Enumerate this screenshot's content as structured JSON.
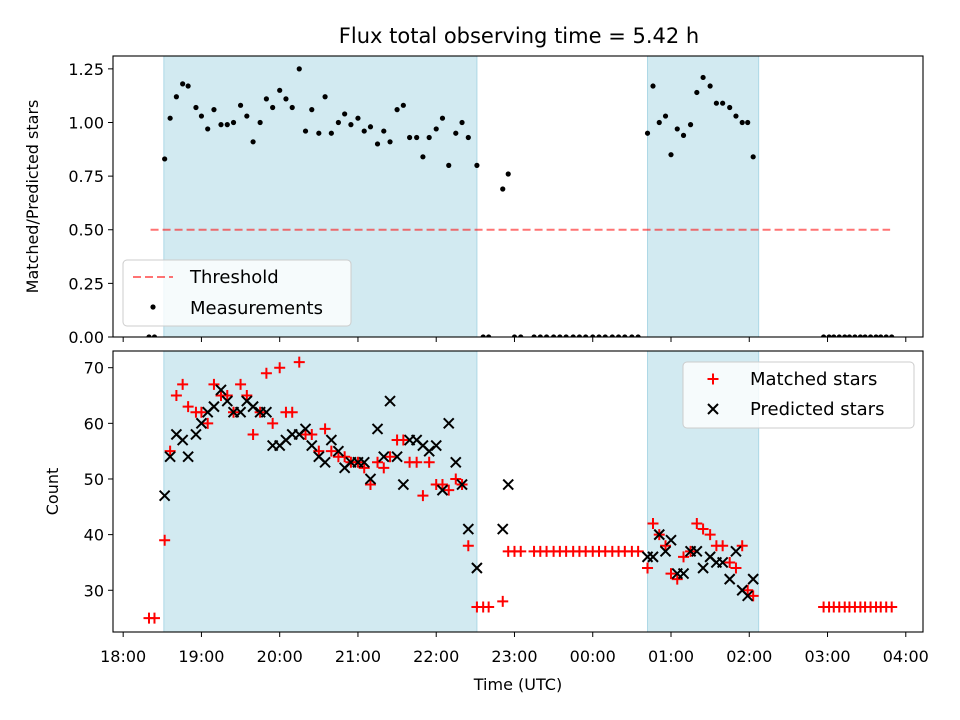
{
  "title": "Flux total observing time = 5.42 h",
  "colors": {
    "shade": "#add8e6",
    "threshold": "#ff0000",
    "measurement": "#000000",
    "matched": "#ff0000",
    "predicted": "#000000"
  },
  "chart_data": [
    {
      "type": "scatter",
      "title": "Flux total observing time = 5.42 h",
      "xlabel": "",
      "ylabel": "Matched/Predicted stars",
      "xlim": [
        -0.13,
        10.22
      ],
      "ylim": [
        0,
        1.31
      ],
      "x_ticks": [
        "18:00",
        "19:00",
        "20:00",
        "21:00",
        "22:00",
        "23:00",
        "00:00",
        "01:00",
        "02:00",
        "03:00",
        "04:00"
      ],
      "y_ticks": [
        "0.00",
        "0.25",
        "0.50",
        "0.75",
        "1.00",
        "1.25"
      ],
      "shaded_intervals": [
        [
          0.52,
          4.52
        ],
        [
          6.7,
          8.12
        ]
      ],
      "legend": {
        "position": "lower-left",
        "entries": [
          "Threshold",
          "Measurements"
        ]
      },
      "threshold": {
        "name": "Threshold",
        "x": [
          0.35,
          9.8
        ],
        "y": 0.5
      },
      "series": [
        {
          "name": "Measurements",
          "x": [
            0.33,
            0.4,
            0.53,
            0.6,
            0.68,
            0.76,
            0.83,
            0.93,
            1.0,
            1.08,
            1.16,
            1.25,
            1.33,
            1.41,
            1.5,
            1.58,
            1.66,
            1.75,
            1.83,
            1.91,
            2.0,
            2.08,
            2.16,
            2.25,
            2.33,
            2.41,
            2.5,
            2.58,
            2.66,
            2.75,
            2.83,
            2.91,
            3.0,
            3.08,
            3.16,
            3.25,
            3.33,
            3.41,
            3.5,
            3.58,
            3.66,
            3.75,
            3.83,
            3.91,
            4.0,
            4.08,
            4.16,
            4.25,
            4.33,
            4.41,
            4.52,
            4.6,
            4.67,
            4.85,
            4.92,
            5.0,
            5.08,
            5.25,
            5.33,
            5.41,
            5.5,
            5.58,
            5.66,
            5.75,
            5.83,
            5.91,
            6.0,
            6.08,
            6.16,
            6.25,
            6.33,
            6.41,
            6.5,
            6.58,
            6.7,
            6.77,
            6.85,
            6.93,
            7.0,
            7.08,
            7.16,
            7.25,
            7.33,
            7.41,
            7.5,
            7.58,
            7.66,
            7.75,
            7.83,
            7.91,
            7.98,
            8.05,
            8.95,
            9.02,
            9.08,
            9.15,
            9.22,
            9.28,
            9.35,
            9.42,
            9.48,
            9.55,
            9.62,
            9.68,
            9.75,
            9.82
          ],
          "y": [
            0.0,
            0.0,
            0.83,
            1.02,
            1.12,
            1.18,
            1.17,
            1.07,
            1.03,
            0.97,
            1.06,
            0.99,
            0.99,
            1.0,
            1.08,
            1.03,
            0.91,
            1.0,
            1.11,
            1.07,
            1.15,
            1.11,
            1.07,
            1.25,
            0.96,
            1.06,
            0.95,
            1.12,
            0.95,
            1.0,
            1.04,
            0.99,
            1.02,
            0.96,
            0.98,
            0.9,
            0.96,
            0.91,
            1.06,
            1.08,
            0.93,
            0.93,
            0.84,
            0.93,
            0.97,
            1.02,
            0.8,
            0.95,
            1.0,
            0.93,
            0.8,
            0.0,
            0.0,
            0.69,
            0.76,
            0.0,
            0.0,
            0.0,
            0.0,
            0.0,
            0.0,
            0.0,
            0.0,
            0.0,
            0.0,
            0.0,
            0.0,
            0.0,
            0.0,
            0.0,
            0.0,
            0.0,
            0.0,
            0.0,
            0.95,
            1.17,
            1.0,
            1.03,
            0.85,
            0.97,
            0.94,
            0.99,
            1.14,
            1.21,
            1.17,
            1.09,
            1.09,
            1.07,
            1.03,
            1.0,
            1.0,
            0.84,
            0.0,
            0.0,
            0.0,
            0.0,
            0.0,
            0.0,
            0.0,
            0.0,
            0.0,
            0.0,
            0.0,
            0.0,
            0.0,
            0.0
          ]
        }
      ]
    },
    {
      "type": "scatter",
      "title": "",
      "xlabel": "Time (UTC)",
      "ylabel": "Count",
      "xlim": [
        -0.13,
        10.22
      ],
      "ylim": [
        22.5,
        73
      ],
      "x_ticks": [
        "18:00",
        "19:00",
        "20:00",
        "21:00",
        "22:00",
        "23:00",
        "00:00",
        "01:00",
        "02:00",
        "03:00",
        "04:00"
      ],
      "y_ticks": [
        "30",
        "40",
        "50",
        "60",
        "70"
      ],
      "shaded_intervals": [
        [
          0.52,
          4.52
        ],
        [
          6.7,
          8.12
        ]
      ],
      "legend": {
        "position": "top-right",
        "entries": [
          "Matched stars",
          "Predicted stars"
        ]
      },
      "series": [
        {
          "name": "Matched stars",
          "x": [
            0.33,
            0.4,
            0.53,
            0.6,
            0.68,
            0.76,
            0.83,
            0.93,
            1.0,
            1.08,
            1.16,
            1.25,
            1.33,
            1.41,
            1.5,
            1.58,
            1.66,
            1.75,
            1.83,
            1.91,
            2.0,
            2.08,
            2.16,
            2.25,
            2.33,
            2.41,
            2.5,
            2.58,
            2.66,
            2.75,
            2.83,
            2.91,
            3.0,
            3.08,
            3.16,
            3.25,
            3.33,
            3.41,
            3.5,
            3.58,
            3.66,
            3.75,
            3.83,
            3.91,
            4.0,
            4.08,
            4.16,
            4.25,
            4.33,
            4.41,
            4.52,
            4.6,
            4.67,
            4.85,
            4.92,
            5.0,
            5.08,
            5.25,
            5.33,
            5.41,
            5.5,
            5.58,
            5.66,
            5.75,
            5.83,
            5.91,
            6.0,
            6.08,
            6.16,
            6.25,
            6.33,
            6.41,
            6.5,
            6.58,
            6.7,
            6.77,
            6.85,
            6.93,
            7.0,
            7.08,
            7.16,
            7.25,
            7.33,
            7.41,
            7.5,
            7.58,
            7.66,
            7.75,
            7.83,
            7.91,
            7.98,
            8.05,
            8.95,
            9.02,
            9.08,
            9.15,
            9.22,
            9.28,
            9.35,
            9.42,
            9.48,
            9.55,
            9.62,
            9.68,
            9.75,
            9.82
          ],
          "y": [
            25,
            25,
            39,
            55,
            65,
            67,
            63,
            62,
            62,
            60,
            67,
            65,
            65,
            62,
            67,
            65,
            58,
            62,
            69,
            60,
            70,
            62,
            62,
            71,
            58,
            58,
            55,
            59,
            55,
            54,
            54,
            53,
            53,
            52,
            49,
            53,
            52,
            54,
            57,
            57,
            53,
            53,
            47,
            53,
            49,
            49,
            48,
            50,
            49,
            38,
            27,
            27,
            27,
            28,
            37,
            37,
            37,
            37,
            37,
            37,
            37,
            37,
            37,
            37,
            37,
            37,
            37,
            37,
            37,
            37,
            37,
            37,
            37,
            37,
            34,
            42,
            40,
            38,
            33,
            32,
            36,
            37,
            42,
            41,
            40,
            38,
            38,
            35,
            34,
            38,
            30,
            29,
            27,
            27,
            27,
            27,
            27,
            27,
            27,
            27,
            27,
            27,
            27,
            27,
            27,
            27
          ]
        },
        {
          "name": "Predicted stars",
          "x": [
            0.53,
            0.6,
            0.68,
            0.76,
            0.83,
            0.93,
            1.0,
            1.08,
            1.16,
            1.25,
            1.33,
            1.41,
            1.5,
            1.58,
            1.66,
            1.75,
            1.83,
            1.91,
            2.0,
            2.08,
            2.16,
            2.25,
            2.33,
            2.41,
            2.5,
            2.58,
            2.66,
            2.75,
            2.83,
            2.91,
            3.0,
            3.08,
            3.16,
            3.25,
            3.33,
            3.41,
            3.5,
            3.58,
            3.66,
            3.75,
            3.83,
            3.91,
            4.0,
            4.08,
            4.16,
            4.25,
            4.33,
            4.41,
            4.52,
            4.85,
            4.92,
            6.7,
            6.77,
            6.85,
            6.93,
            7.0,
            7.08,
            7.16,
            7.25,
            7.33,
            7.41,
            7.5,
            7.58,
            7.66,
            7.75,
            7.83,
            7.91,
            7.98,
            8.05
          ],
          "y": [
            47,
            54,
            58,
            57,
            54,
            58,
            60,
            62,
            63,
            66,
            64,
            62,
            62,
            64,
            63,
            62,
            62,
            56,
            56,
            57,
            58,
            58,
            59,
            56,
            54,
            53,
            57,
            55,
            52,
            53,
            53,
            53,
            50,
            59,
            54,
            64,
            54,
            49,
            57,
            57,
            56,
            55,
            56,
            48,
            60,
            53,
            49,
            41,
            34,
            41,
            49,
            36,
            36,
            40,
            37,
            39,
            33,
            33,
            37,
            37,
            34,
            36,
            35,
            35,
            32,
            37,
            30,
            29,
            32
          ]
        }
      ]
    }
  ]
}
